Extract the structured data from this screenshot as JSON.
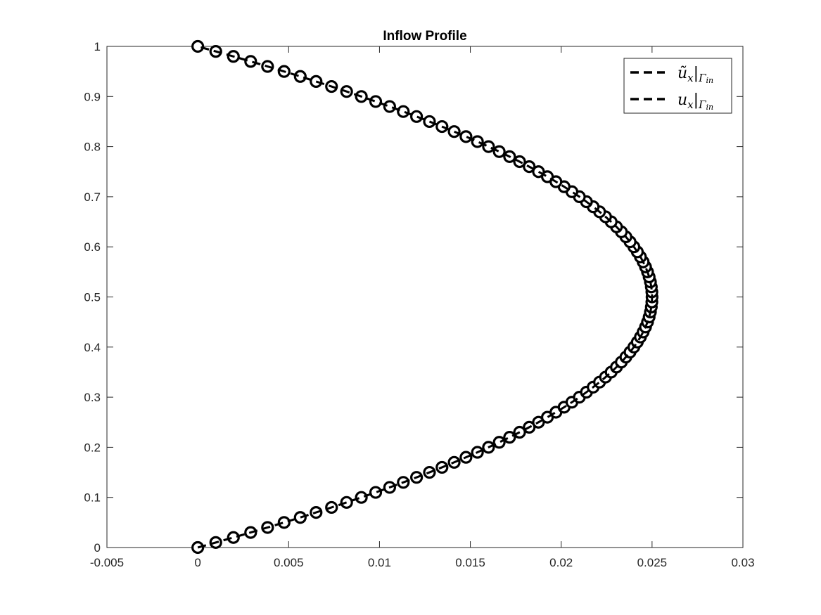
{
  "chart_data": {
    "type": "line",
    "title": "Inflow Profile",
    "xlabel": "",
    "ylabel": "",
    "xlim": [
      -0.005,
      0.03
    ],
    "ylim": [
      0,
      1
    ],
    "xticks": [
      -0.005,
      0,
      0.005,
      0.01,
      0.015,
      0.02,
      0.025,
      0.03
    ],
    "xtick_labels": [
      "-0.005",
      "0",
      "0.005",
      "0.01",
      "0.015",
      "0.02",
      "0.025",
      "0.03"
    ],
    "yticks": [
      0,
      0.1,
      0.2,
      0.3,
      0.4,
      0.5,
      0.6,
      0.7,
      0.8,
      0.9,
      1
    ],
    "ytick_labels": [
      "0",
      "0.1",
      "0.2",
      "0.3",
      "0.4",
      "0.5",
      "0.6",
      "0.7",
      "0.8",
      "0.9",
      "1"
    ],
    "grid": false,
    "legend_position": "top-right",
    "series": [
      {
        "name": "ũ_x|Γ_in",
        "legend": {
          "main": "ũ",
          "sub": "x",
          "bar": "|",
          "cap": "Γ",
          "capsub": "in"
        },
        "style": "dashed",
        "marker": "circle",
        "color": "#000000",
        "profile": "parabolic",
        "peak": 0.025,
        "y": [
          0,
          0.01,
          0.02,
          0.03,
          0.04,
          0.05,
          0.06,
          0.07,
          0.08,
          0.09,
          0.1,
          0.11,
          0.12,
          0.13,
          0.14,
          0.15,
          0.16,
          0.17,
          0.18,
          0.19,
          0.2,
          0.21,
          0.22,
          0.23,
          0.24,
          0.25,
          0.26,
          0.27,
          0.28,
          0.29,
          0.3,
          0.31,
          0.32,
          0.33,
          0.34,
          0.35,
          0.36,
          0.37,
          0.38,
          0.39,
          0.4,
          0.41,
          0.42,
          0.43,
          0.44,
          0.45,
          0.46,
          0.47,
          0.48,
          0.49,
          0.5,
          0.51,
          0.52,
          0.53,
          0.54,
          0.55,
          0.56,
          0.57,
          0.58,
          0.59,
          0.6,
          0.61,
          0.62,
          0.63,
          0.64,
          0.65,
          0.66,
          0.67,
          0.68,
          0.69,
          0.7,
          0.71,
          0.72,
          0.73,
          0.74,
          0.75,
          0.76,
          0.77,
          0.78,
          0.79,
          0.8,
          0.81,
          0.82,
          0.83,
          0.84,
          0.85,
          0.86,
          0.87,
          0.88,
          0.89,
          0.9,
          0.91,
          0.92,
          0.93,
          0.94,
          0.95,
          0.96,
          0.97,
          0.98,
          0.99,
          1
        ]
      },
      {
        "name": "u_x|Γ_in",
        "legend": {
          "main": "u",
          "sub": "x",
          "bar": "|",
          "cap": "Γ",
          "capsub": "in"
        },
        "style": "dashed",
        "marker": "none",
        "color": "#000000",
        "profile": "parabolic",
        "peak": 0.025,
        "y": [
          0,
          0.01,
          0.02,
          0.03,
          0.04,
          0.05,
          0.06,
          0.07,
          0.08,
          0.09,
          0.1,
          0.11,
          0.12,
          0.13,
          0.14,
          0.15,
          0.16,
          0.17,
          0.18,
          0.19,
          0.2,
          0.21,
          0.22,
          0.23,
          0.24,
          0.25,
          0.26,
          0.27,
          0.28,
          0.29,
          0.3,
          0.31,
          0.32,
          0.33,
          0.34,
          0.35,
          0.36,
          0.37,
          0.38,
          0.39,
          0.4,
          0.41,
          0.42,
          0.43,
          0.44,
          0.45,
          0.46,
          0.47,
          0.48,
          0.49,
          0.5,
          0.51,
          0.52,
          0.53,
          0.54,
          0.55,
          0.56,
          0.57,
          0.58,
          0.59,
          0.6,
          0.61,
          0.62,
          0.63,
          0.64,
          0.65,
          0.66,
          0.67,
          0.68,
          0.69,
          0.7,
          0.71,
          0.72,
          0.73,
          0.74,
          0.75,
          0.76,
          0.77,
          0.78,
          0.79,
          0.8,
          0.81,
          0.82,
          0.83,
          0.84,
          0.85,
          0.86,
          0.87,
          0.88,
          0.89,
          0.9,
          0.91,
          0.92,
          0.93,
          0.94,
          0.95,
          0.96,
          0.97,
          0.98,
          0.99,
          1
        ]
      }
    ]
  }
}
